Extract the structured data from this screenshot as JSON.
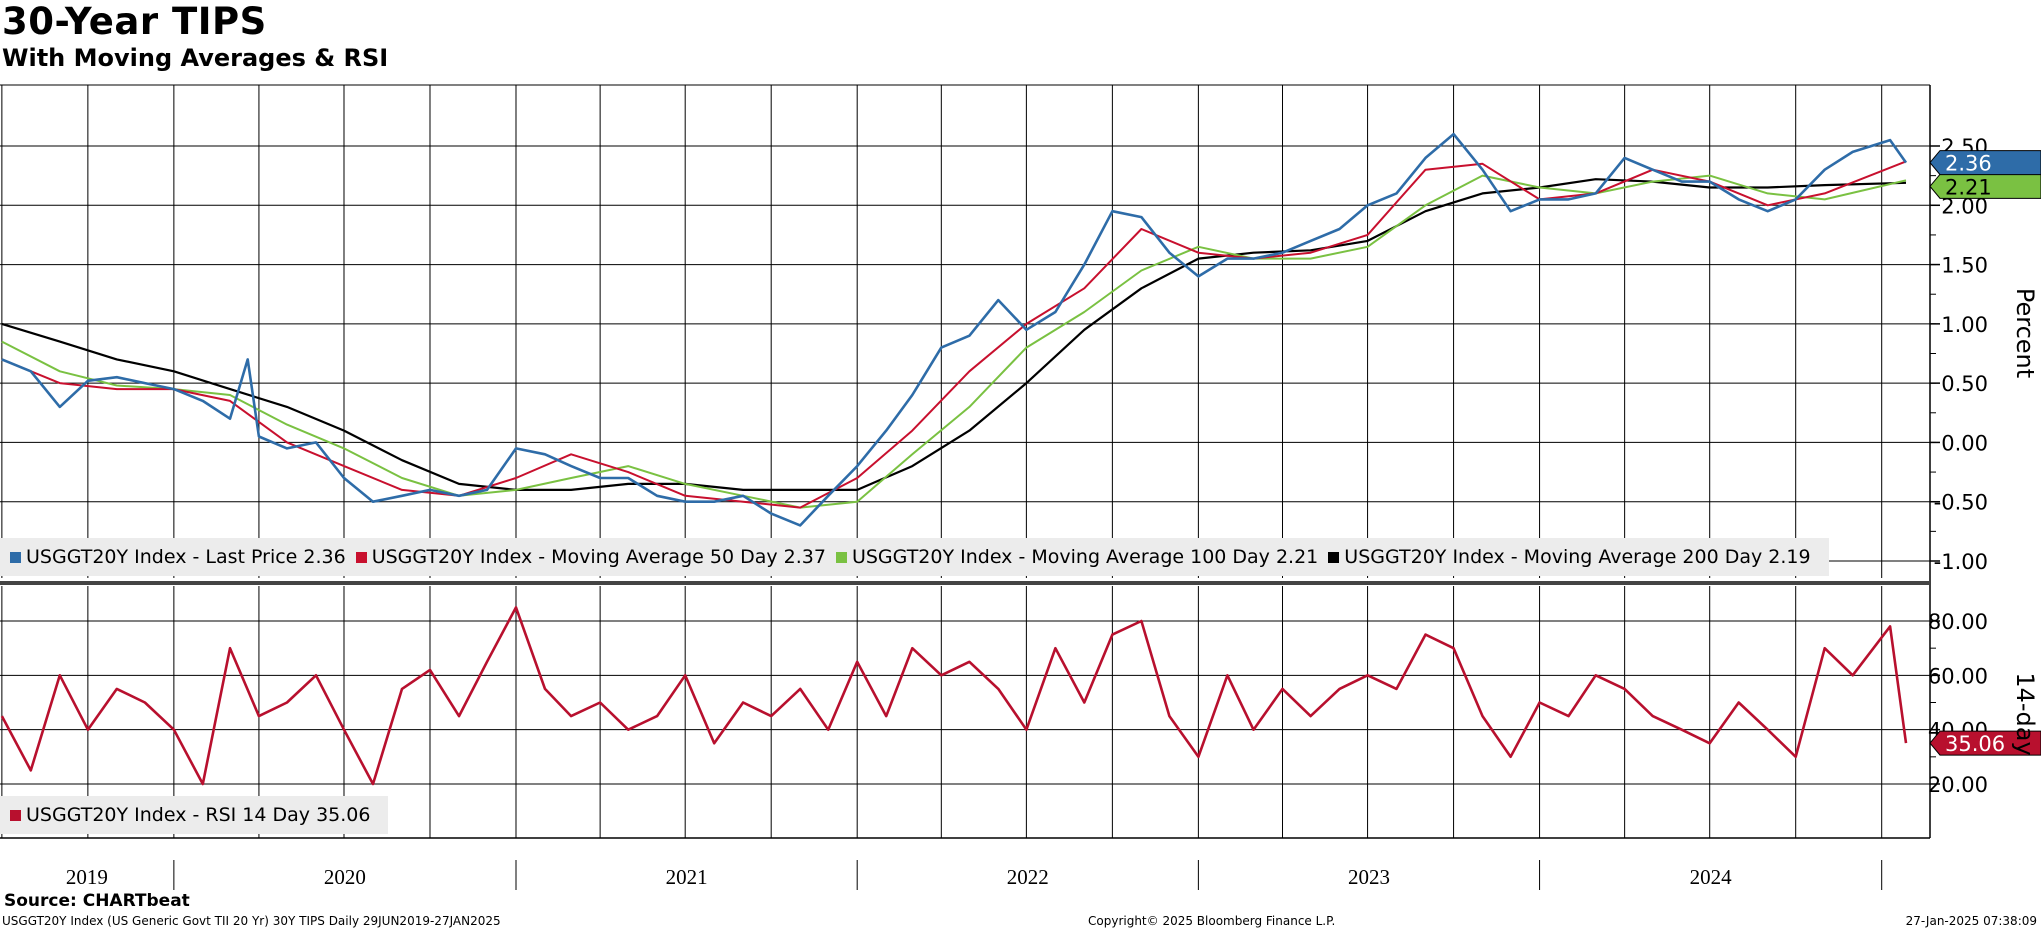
{
  "title": "30-Year TIPS",
  "subtitle": "With Moving Averages & RSI",
  "source": "Source: CHARTbeat",
  "footer_left": "USGGT20Y Index (US Generic Govt TII 20 Yr) 30Y TIPS  Daily 29JUN2019-27JAN2025",
  "footer_mid": "Copyright© 2025 Bloomberg Finance L.P.",
  "footer_right": "27-Jan-2025 07:38:09",
  "colors": {
    "last_price": "#2e6ca8",
    "ma50": "#c8102e",
    "ma100": "#7ac142",
    "ma200": "#000000",
    "rsi": "#b8102e"
  },
  "legend_top": [
    {
      "label": "USGGT20Y Index - Last Price 2.36",
      "color": "#2e6ca8"
    },
    {
      "label": "USGGT20Y Index - Moving Average 50 Day 2.37",
      "color": "#c8102e"
    },
    {
      "label": "USGGT20Y Index - Moving Average 100 Day 2.21",
      "color": "#7ac142"
    },
    {
      "label": "USGGT20Y Index - Moving Average 200 Day 2.19",
      "color": "#000000"
    }
  ],
  "legend_bottom": [
    {
      "label": "USGGT20Y Index - RSI 14 Day 35.06",
      "color": "#b8102e"
    }
  ],
  "tags": {
    "last": "2.36",
    "ma100": "2.21",
    "rsi": "35.06"
  },
  "chart_data": [
    {
      "type": "line",
      "title": "30-Year TIPS",
      "subtitle": "With Moving Averages & RSI",
      "ylabel": "Percent",
      "ylim": [
        -1.0,
        2.5
      ],
      "yticks": [
        "2.50",
        "2.00",
        "1.50",
        "1.00",
        "0.50",
        "0.00",
        "-0.50",
        "-1.00"
      ],
      "xlim": [
        "2019-06-29",
        "2025-01-27"
      ],
      "x_tick_labels": [
        "2019",
        "2020",
        "2021",
        "2022",
        "2023",
        "2024"
      ],
      "grid": true,
      "legend_position": "bottom-left",
      "series": [
        {
          "name": "USGGT20Y Index - Last Price",
          "last": 2.36,
          "x": [
            "2019-07-01",
            "2019-08-01",
            "2019-09-01",
            "2019-10-01",
            "2019-11-01",
            "2019-12-01",
            "2020-01-01",
            "2020-02-01",
            "2020-03-01",
            "2020-03-20",
            "2020-04-01",
            "2020-05-01",
            "2020-06-01",
            "2020-07-01",
            "2020-08-01",
            "2020-09-01",
            "2020-10-01",
            "2020-11-01",
            "2020-12-01",
            "2021-01-01",
            "2021-02-01",
            "2021-03-01",
            "2021-04-01",
            "2021-05-01",
            "2021-06-01",
            "2021-07-01",
            "2021-08-01",
            "2021-09-01",
            "2021-10-01",
            "2021-11-01",
            "2021-12-01",
            "2022-01-01",
            "2022-02-01",
            "2022-03-01",
            "2022-04-01",
            "2022-05-01",
            "2022-06-01",
            "2022-07-01",
            "2022-08-01",
            "2022-09-01",
            "2022-10-01",
            "2022-11-01",
            "2022-12-01",
            "2023-01-01",
            "2023-02-01",
            "2023-03-01",
            "2023-04-01",
            "2023-05-01",
            "2023-06-01",
            "2023-07-01",
            "2023-08-01",
            "2023-09-01",
            "2023-10-01",
            "2023-11-01",
            "2023-12-01",
            "2024-01-01",
            "2024-02-01",
            "2024-03-01",
            "2024-04-01",
            "2024-05-01",
            "2024-06-01",
            "2024-07-01",
            "2024-08-01",
            "2024-09-01",
            "2024-10-01",
            "2024-11-01",
            "2024-12-01",
            "2025-01-10",
            "2025-01-27"
          ],
          "values": [
            0.7,
            0.6,
            0.3,
            0.52,
            0.55,
            0.5,
            0.45,
            0.35,
            0.2,
            0.7,
            0.05,
            -0.05,
            0.0,
            -0.3,
            -0.5,
            -0.45,
            -0.4,
            -0.45,
            -0.4,
            -0.05,
            -0.1,
            -0.2,
            -0.3,
            -0.3,
            -0.45,
            -0.5,
            -0.5,
            -0.45,
            -0.6,
            -0.7,
            -0.45,
            -0.2,
            0.1,
            0.4,
            0.8,
            0.9,
            1.2,
            0.95,
            1.1,
            1.5,
            1.95,
            1.9,
            1.6,
            1.4,
            1.55,
            1.55,
            1.6,
            1.7,
            1.8,
            2.0,
            2.1,
            2.4,
            2.6,
            2.3,
            1.95,
            2.05,
            2.05,
            2.1,
            2.4,
            2.3,
            2.2,
            2.2,
            2.05,
            1.95,
            2.05,
            2.3,
            2.45,
            2.55,
            2.36
          ]
        },
        {
          "name": "USGGT20Y Index - Moving Average 50 Day",
          "last": 2.37,
          "x": [
            "2019-07-01",
            "2019-09-01",
            "2019-11-01",
            "2020-01-01",
            "2020-03-01",
            "2020-05-01",
            "2020-07-01",
            "2020-09-01",
            "2020-11-01",
            "2021-01-01",
            "2021-03-01",
            "2021-05-01",
            "2021-07-01",
            "2021-09-01",
            "2021-11-01",
            "2022-01-01",
            "2022-03-01",
            "2022-05-01",
            "2022-07-01",
            "2022-09-01",
            "2022-11-01",
            "2023-01-01",
            "2023-03-01",
            "2023-05-01",
            "2023-07-01",
            "2023-09-01",
            "2023-11-01",
            "2024-01-01",
            "2024-03-01",
            "2024-05-01",
            "2024-07-01",
            "2024-09-01",
            "2024-11-01",
            "2025-01-27"
          ],
          "values": [
            0.7,
            0.5,
            0.45,
            0.45,
            0.35,
            0.0,
            -0.2,
            -0.4,
            -0.45,
            -0.3,
            -0.1,
            -0.25,
            -0.45,
            -0.5,
            -0.55,
            -0.3,
            0.1,
            0.6,
            1.0,
            1.3,
            1.8,
            1.6,
            1.55,
            1.6,
            1.75,
            2.3,
            2.35,
            2.05,
            2.1,
            2.3,
            2.2,
            2.0,
            2.1,
            2.37
          ]
        },
        {
          "name": "USGGT20Y Index - Moving Average 100 Day",
          "last": 2.21,
          "x": [
            "2019-07-01",
            "2019-09-01",
            "2019-11-01",
            "2020-01-01",
            "2020-03-01",
            "2020-05-01",
            "2020-07-01",
            "2020-09-01",
            "2020-11-01",
            "2021-01-01",
            "2021-03-01",
            "2021-05-01",
            "2021-07-01",
            "2021-09-01",
            "2021-11-01",
            "2022-01-01",
            "2022-03-01",
            "2022-05-01",
            "2022-07-01",
            "2022-09-01",
            "2022-11-01",
            "2023-01-01",
            "2023-03-01",
            "2023-05-01",
            "2023-07-01",
            "2023-09-01",
            "2023-11-01",
            "2024-01-01",
            "2024-03-01",
            "2024-05-01",
            "2024-07-01",
            "2024-09-01",
            "2024-11-01",
            "2025-01-27"
          ],
          "values": [
            0.85,
            0.6,
            0.48,
            0.45,
            0.4,
            0.15,
            -0.05,
            -0.3,
            -0.45,
            -0.4,
            -0.3,
            -0.2,
            -0.35,
            -0.45,
            -0.55,
            -0.5,
            -0.1,
            0.3,
            0.8,
            1.1,
            1.45,
            1.65,
            1.55,
            1.55,
            1.65,
            2.0,
            2.25,
            2.15,
            2.1,
            2.2,
            2.25,
            2.1,
            2.05,
            2.21
          ]
        },
        {
          "name": "USGGT20Y Index - Moving Average 200 Day",
          "last": 2.19,
          "x": [
            "2019-07-01",
            "2019-09-01",
            "2019-11-01",
            "2020-01-01",
            "2020-03-01",
            "2020-05-01",
            "2020-07-01",
            "2020-09-01",
            "2020-11-01",
            "2021-01-01",
            "2021-03-01",
            "2021-05-01",
            "2021-07-01",
            "2021-09-01",
            "2021-11-01",
            "2022-01-01",
            "2022-03-01",
            "2022-05-01",
            "2022-07-01",
            "2022-09-01",
            "2022-11-01",
            "2023-01-01",
            "2023-03-01",
            "2023-05-01",
            "2023-07-01",
            "2023-09-01",
            "2023-11-01",
            "2024-01-01",
            "2024-03-01",
            "2024-05-01",
            "2024-07-01",
            "2024-09-01",
            "2024-11-01",
            "2025-01-27"
          ],
          "values": [
            1.0,
            0.85,
            0.7,
            0.6,
            0.45,
            0.3,
            0.1,
            -0.15,
            -0.35,
            -0.4,
            -0.4,
            -0.35,
            -0.35,
            -0.4,
            -0.4,
            -0.4,
            -0.2,
            0.1,
            0.5,
            0.95,
            1.3,
            1.55,
            1.6,
            1.62,
            1.7,
            1.95,
            2.1,
            2.15,
            2.22,
            2.2,
            2.15,
            2.15,
            2.17,
            2.19
          ]
        }
      ]
    },
    {
      "type": "line",
      "ylabel": "14-day",
      "ylim": [
        0,
        90
      ],
      "yticks": [
        "80.00",
        "60.00",
        "40.00",
        "20.00"
      ],
      "xlim": [
        "2019-06-29",
        "2025-01-27"
      ],
      "x_tick_labels": [
        "2019",
        "2020",
        "2021",
        "2022",
        "2023",
        "2024"
      ],
      "grid": true,
      "legend_position": "bottom-left",
      "series": [
        {
          "name": "USGGT20Y Index - RSI 14 Day",
          "last": 35.06,
          "x": [
            "2019-07-01",
            "2019-08-01",
            "2019-09-01",
            "2019-10-01",
            "2019-11-01",
            "2019-12-01",
            "2020-01-01",
            "2020-02-01",
            "2020-03-01",
            "2020-04-01",
            "2020-05-01",
            "2020-06-01",
            "2020-07-01",
            "2020-08-01",
            "2020-09-01",
            "2020-10-01",
            "2020-11-01",
            "2020-12-01",
            "2021-01-01",
            "2021-02-01",
            "2021-03-01",
            "2021-04-01",
            "2021-05-01",
            "2021-06-01",
            "2021-07-01",
            "2021-08-01",
            "2021-09-01",
            "2021-10-01",
            "2021-11-01",
            "2021-12-01",
            "2022-01-01",
            "2022-02-01",
            "2022-03-01",
            "2022-04-01",
            "2022-05-01",
            "2022-06-01",
            "2022-07-01",
            "2022-08-01",
            "2022-09-01",
            "2022-10-01",
            "2022-11-01",
            "2022-12-01",
            "2023-01-01",
            "2023-02-01",
            "2023-03-01",
            "2023-04-01",
            "2023-05-01",
            "2023-06-01",
            "2023-07-01",
            "2023-08-01",
            "2023-09-01",
            "2023-10-01",
            "2023-11-01",
            "2023-12-01",
            "2024-01-01",
            "2024-02-01",
            "2024-03-01",
            "2024-04-01",
            "2024-05-01",
            "2024-06-01",
            "2024-07-01",
            "2024-08-01",
            "2024-09-01",
            "2024-10-01",
            "2024-11-01",
            "2024-12-01",
            "2025-01-10",
            "2025-01-27"
          ],
          "values": [
            45,
            25,
            60,
            40,
            55,
            50,
            40,
            20,
            70,
            45,
            50,
            60,
            40,
            20,
            55,
            62,
            45,
            65,
            85,
            55,
            45,
            50,
            40,
            45,
            60,
            35,
            50,
            45,
            55,
            40,
            65,
            45,
            70,
            60,
            65,
            55,
            40,
            70,
            50,
            75,
            80,
            45,
            30,
            60,
            40,
            55,
            45,
            55,
            60,
            55,
            75,
            70,
            45,
            30,
            50,
            45,
            60,
            55,
            45,
            40,
            35,
            50,
            40,
            30,
            70,
            60,
            78,
            35.06
          ]
        }
      ]
    }
  ]
}
